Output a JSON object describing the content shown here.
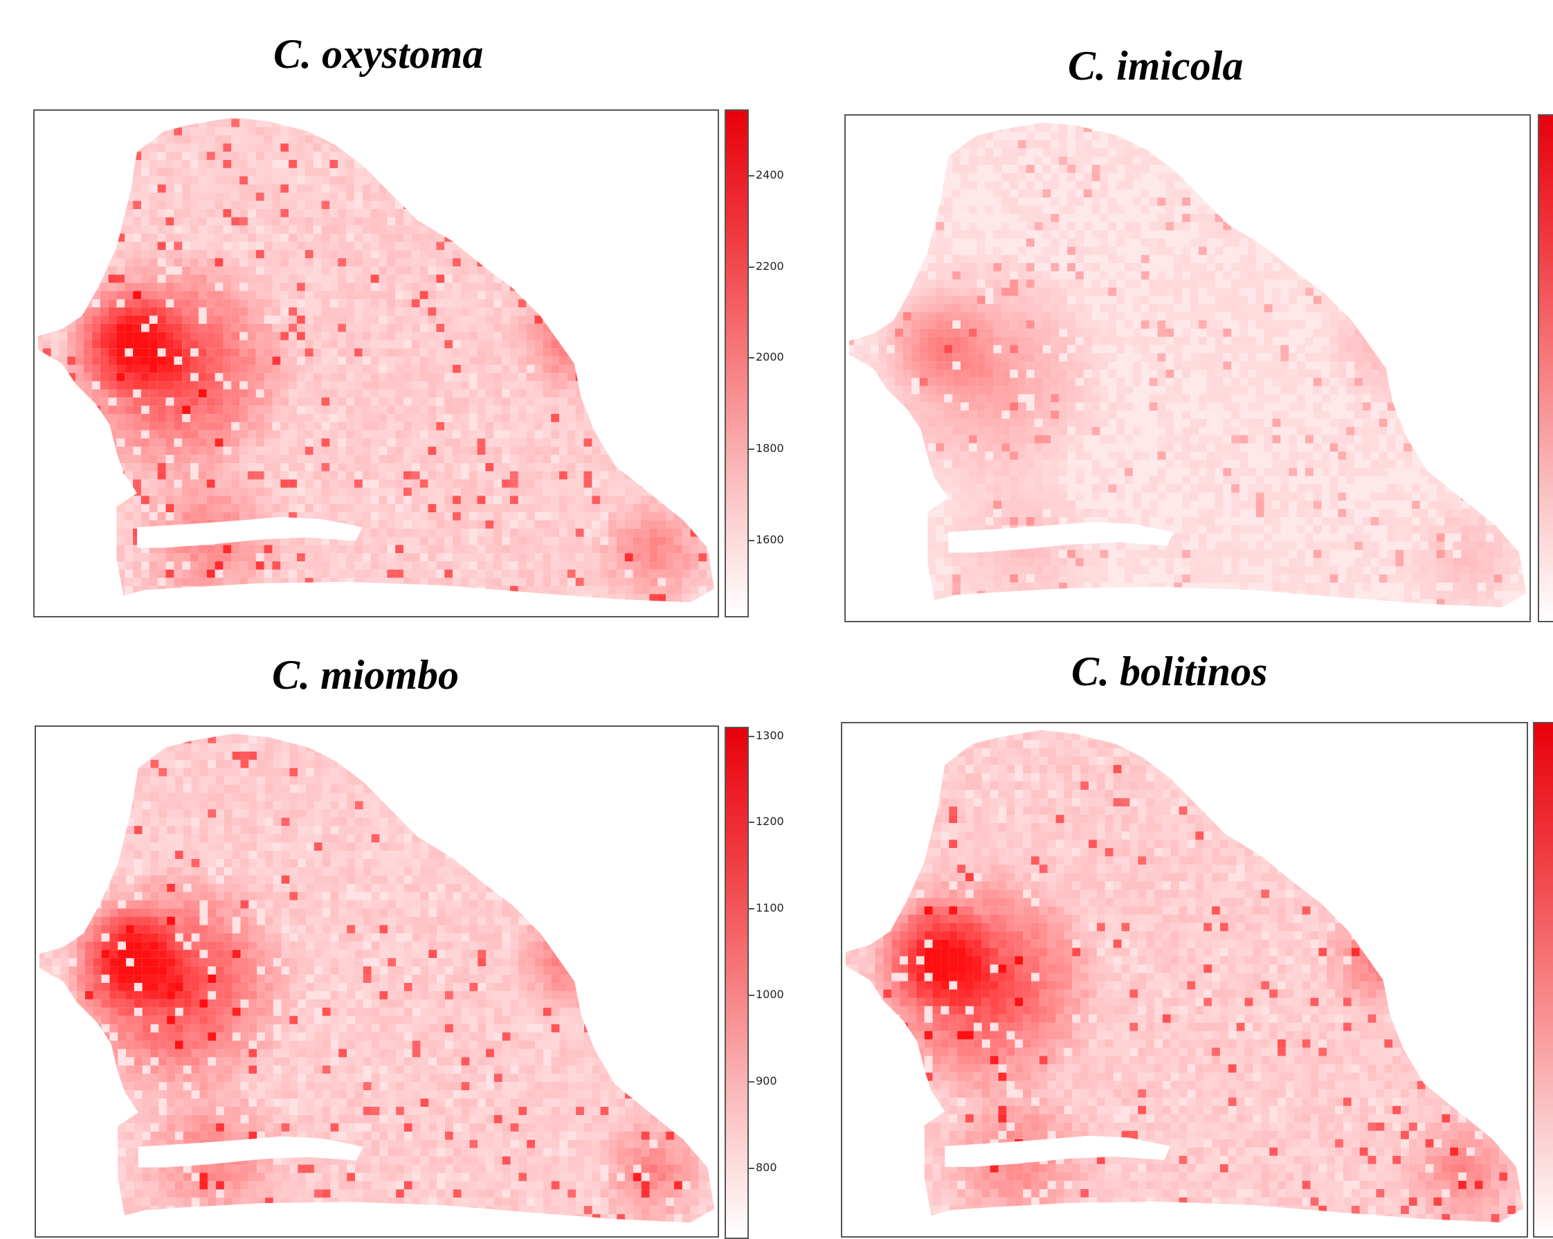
{
  "panels": [
    {
      "title": "C. oxystoma",
      "legend_ticks": [
        "2400",
        "2200",
        "2000",
        "1800",
        "1600"
      ],
      "intensity": "high"
    },
    {
      "title": "C. imicola",
      "legend_ticks": [],
      "intensity": "low"
    },
    {
      "title": "C. miombo",
      "legend_ticks": [
        "1300",
        "1200",
        "1100",
        "1000",
        "900",
        "800"
      ],
      "intensity": "high"
    },
    {
      "title": "C. bolitinos",
      "legend_ticks": [],
      "intensity": "high"
    }
  ],
  "colors": {
    "high": "#e8000b",
    "low": "#ffe6e7",
    "frame": "#555555"
  }
}
